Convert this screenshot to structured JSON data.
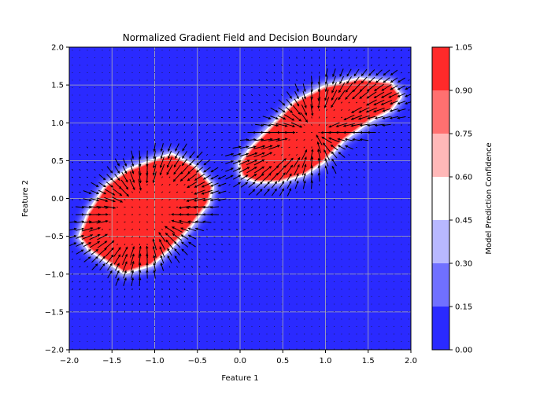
{
  "chart_data": {
    "type": "heatmap",
    "title": "Normalized Gradient Field and Decision Boundary",
    "xlabel": "Feature 1",
    "ylabel": "Feature 2",
    "xlim": [
      -2.0,
      2.0
    ],
    "ylim": [
      -2.0,
      2.0
    ],
    "x_ticks": [
      "−2.0",
      "−1.5",
      "−1.0",
      "−0.5",
      "0.0",
      "0.5",
      "1.0",
      "1.5",
      "2.0"
    ],
    "y_ticks": [
      "−2.0",
      "−1.5",
      "−1.0",
      "−0.5",
      "0.0",
      "0.5",
      "1.0",
      "1.5",
      "2.0"
    ],
    "grid": true,
    "colorbar": {
      "label": "Model Prediction Confidence",
      "ticks": [
        "0.00",
        "0.15",
        "0.30",
        "0.45",
        "0.60",
        "0.75",
        "0.90",
        "1.05"
      ],
      "levels": [
        0.0,
        0.15,
        0.3,
        0.45,
        0.6,
        0.75,
        0.9,
        1.05
      ],
      "colors": [
        "#2a2aff",
        "#7070ff",
        "#b8b8ff",
        "#ffffff",
        "#ffb8b8",
        "#ff7070",
        "#ff2a2a"
      ]
    },
    "background_value": 0.05,
    "clusters": [
      {
        "region": "lower-left",
        "outline": [
          [
            -1.85,
            -0.5
          ],
          [
            -1.75,
            -0.2
          ],
          [
            -1.55,
            0.15
          ],
          [
            -1.3,
            0.35
          ],
          [
            -0.95,
            0.5
          ],
          [
            -0.8,
            0.55
          ],
          [
            -0.55,
            0.4
          ],
          [
            -0.35,
            0.15
          ],
          [
            -0.4,
            -0.05
          ],
          [
            -0.6,
            -0.35
          ],
          [
            -0.85,
            -0.65
          ],
          [
            -1.05,
            -0.85
          ],
          [
            -1.35,
            -0.95
          ],
          [
            -1.55,
            -0.8
          ],
          [
            -1.75,
            -0.65
          ]
        ],
        "peak_value": 0.98
      },
      {
        "region": "upper-right",
        "outline": [
          [
            0.02,
            0.45
          ],
          [
            0.15,
            0.65
          ],
          [
            0.4,
            0.95
          ],
          [
            0.65,
            1.25
          ],
          [
            1.0,
            1.45
          ],
          [
            1.4,
            1.55
          ],
          [
            1.75,
            1.5
          ],
          [
            1.85,
            1.35
          ],
          [
            1.75,
            1.2
          ],
          [
            1.5,
            1.05
          ],
          [
            1.2,
            0.8
          ],
          [
            0.95,
            0.5
          ],
          [
            0.75,
            0.35
          ],
          [
            0.45,
            0.25
          ],
          [
            0.2,
            0.25
          ],
          [
            0.05,
            0.32
          ]
        ],
        "peak_value": 0.98
      }
    ],
    "quiver": "normalized gradient arrows, dense black along both decision boundaries, tiny dots elsewhere"
  }
}
